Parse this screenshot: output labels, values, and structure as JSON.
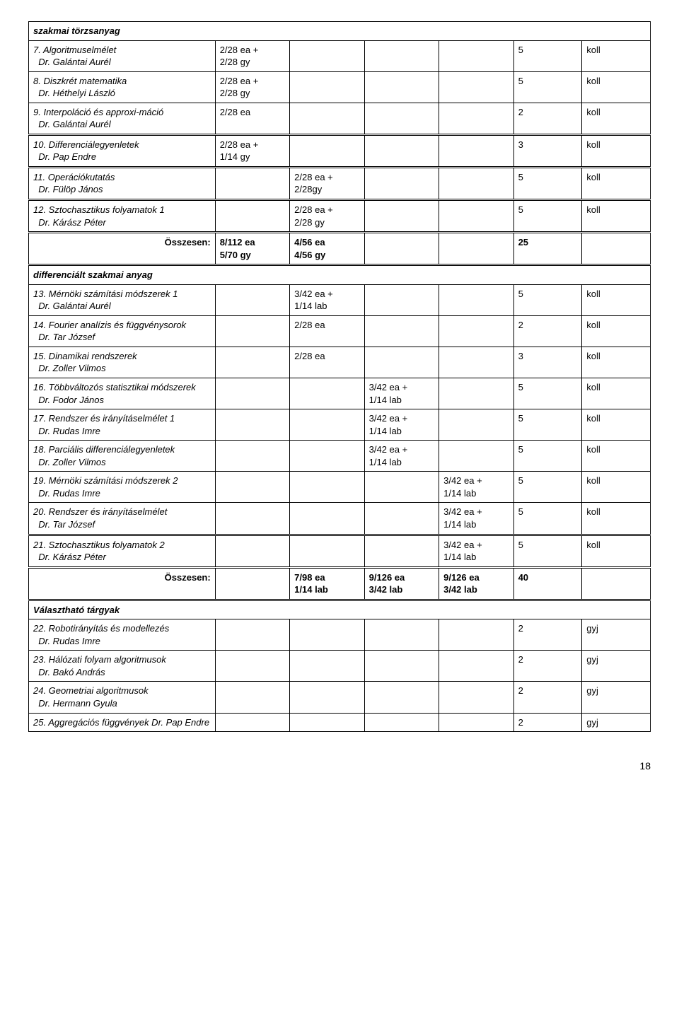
{
  "sections": {
    "szakmai": {
      "title": "szakmai törzsanyag",
      "rows": [
        {
          "subject": "7. Algoritmuselmélet",
          "lecturer": "Dr. Galántai Aurél",
          "colA": "2/28 ea +\n2/28 gy",
          "colB": "",
          "colC": "",
          "colD": "",
          "credit": "5",
          "type": "koll"
        },
        {
          "subject": "8. Diszkrét matematika",
          "lecturer": "Dr. Héthelyi László",
          "colA": "2/28 ea +\n2/28 gy",
          "colB": "",
          "colC": "",
          "colD": "",
          "credit": "5",
          "type": "koll"
        },
        {
          "subject": "9. Interpoláció és approxi-máció",
          "lecturer": "Dr. Galántai Aurél",
          "colA": "2/28 ea",
          "colB": "",
          "colC": "",
          "colD": "",
          "credit": "2",
          "type": "koll"
        },
        {
          "subject": "10. Differenciálegyenletek",
          "lecturer": "Dr. Pap Endre",
          "colA": "2/28 ea +\n1/14 gy",
          "colB": "",
          "colC": "",
          "colD": "",
          "credit": "3",
          "type": "koll",
          "doubleTop": true
        },
        {
          "subject": "11. Operációkutatás",
          "lecturer": "Dr. Fülöp János",
          "colA": "",
          "colB": "2/28 ea +\n2/28gy",
          "colC": "",
          "colD": "",
          "credit": "5",
          "type": "koll",
          "doubleTop": true
        },
        {
          "subject": "12. Sztochasztikus folyamatok 1",
          "lecturer": "Dr. Kárász Péter",
          "colA": "",
          "colB": "2/28 ea +\n2/28 gy",
          "colC": "",
          "colD": "",
          "credit": "5",
          "type": "koll",
          "doubleTop": true
        }
      ],
      "sum": {
        "label": "Összesen:",
        "colA": "8/112 ea\n5/70 gy",
        "colB": "4/56 ea\n4/56 gy",
        "colC": "",
        "colD": "",
        "credit": "25",
        "type": ""
      }
    },
    "diff": {
      "title": "differenciált szakmai anyag",
      "rows": [
        {
          "subject": "13. Mérnöki számítási módszerek 1",
          "lecturer": "Dr. Galántai Aurél",
          "colA": "",
          "colB": "3/42 ea +\n1/14 lab",
          "colC": "",
          "colD": "",
          "credit": "5",
          "type": "koll"
        },
        {
          "subject": "14. Fourier analízis és függvénysorok",
          "lecturer": "Dr. Tar József",
          "colA": "",
          "colB": "2/28 ea",
          "colC": "",
          "colD": "",
          "credit": "2",
          "type": "koll"
        },
        {
          "subject": "15. Dinamikai rendszerek",
          "lecturer": "Dr. Zoller Vilmos",
          "colA": "",
          "colB": "2/28 ea",
          "colC": "",
          "colD": "",
          "credit": "3",
          "type": "koll"
        },
        {
          "subject": "16. Többváltozós statisztikai módszerek",
          "lecturer": "Dr. Fodor János",
          "colA": "",
          "colB": "",
          "colC": "3/42 ea +\n1/14 lab",
          "colD": "",
          "credit": "5",
          "type": "koll"
        },
        {
          "subject": "17. Rendszer és irányításelmélet 1",
          "lecturer": "Dr. Rudas Imre",
          "colA": "",
          "colB": "",
          "colC": "3/42 ea +\n1/14 lab",
          "colD": "",
          "credit": "5",
          "type": "koll"
        },
        {
          "subject": "18. Parciális differenciálegyenletek",
          "lecturer": "Dr. Zoller Vilmos",
          "colA": "",
          "colB": "",
          "colC": "3/42 ea +\n1/14 lab",
          "colD": "",
          "credit": "5",
          "type": "koll"
        },
        {
          "subject": "19. Mérnöki számítási módszerek 2",
          "lecturer": "Dr. Rudas Imre",
          "colA": "",
          "colB": "",
          "colC": "",
          "colD": "3/42 ea +\n1/14 lab",
          "credit": "5",
          "type": "koll"
        },
        {
          "subject": "20. Rendszer és irányításelmélet",
          "lecturer": "Dr. Tar József",
          "colA": "",
          "colB": "",
          "colC": "",
          "colD": "3/42 ea +\n1/14 lab",
          "credit": "5",
          "type": "koll"
        },
        {
          "subject": "21. Sztochasztikus folyamatok 2",
          "lecturer": "Dr. Kárász Péter",
          "colA": "",
          "colB": "",
          "colC": "",
          "colD": "3/42 ea +\n1/14 lab",
          "credit": "5",
          "type": "koll",
          "doubleTop": true
        }
      ],
      "sum": {
        "label": "Összesen:",
        "colA": "",
        "colB": "7/98 ea\n1/14 lab",
        "colC": "9/126 ea\n3/42 lab",
        "colD": "9/126 ea\n3/42 lab",
        "credit": "40",
        "type": ""
      }
    },
    "val": {
      "title": "Választható tárgyak",
      "rows": [
        {
          "subject": "22. Robotirányítás és modellezés",
          "lecturer": "Dr. Rudas Imre",
          "colA": "",
          "colB": "",
          "colC": "",
          "colD": "",
          "credit": "2",
          "type": "gyj"
        },
        {
          "subject": "23. Hálózati folyam algoritmusok",
          "lecturer": "Dr. Bakó András",
          "colA": "",
          "colB": "",
          "colC": "",
          "colD": "",
          "credit": "2",
          "type": "gyj"
        },
        {
          "subject": "24. Geometriai algoritmusok",
          "lecturer": "Dr. Hermann Gyula",
          "colA": "",
          "colB": "",
          "colC": "",
          "colD": "",
          "credit": "2",
          "type": "gyj"
        },
        {
          "subject": "25. Aggregációs függvények",
          "lecturer": "Dr. Pap Endre",
          "colA": "",
          "colB": "",
          "colC": "",
          "colD": "",
          "credit": "2",
          "type": "gyj",
          "lecturerInline": true
        }
      ]
    }
  },
  "page_number": "18"
}
